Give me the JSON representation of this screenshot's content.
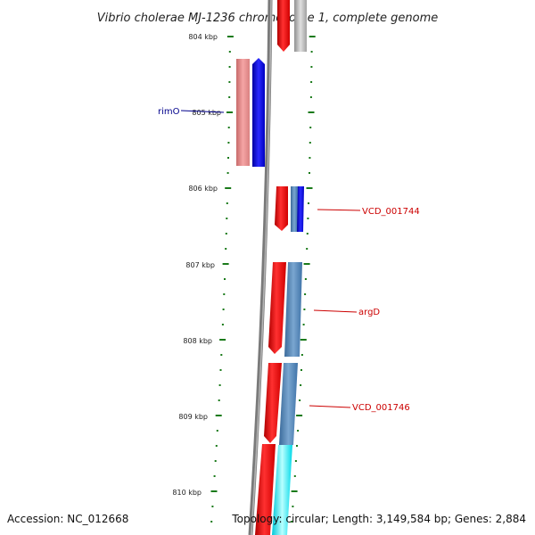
{
  "title": "Vibrio cholerae MJ-1236 chromosome 1, complete genome",
  "footer": {
    "accession": "Accession: NC_012668",
    "summary": "Topology: circular; Length: 3,149,584 bp; Genes: 2,884"
  },
  "ticks": [
    {
      "label": "804 kbp"
    },
    {
      "label": "805 kbp"
    },
    {
      "label": "806 kbp"
    },
    {
      "label": "807 kbp"
    },
    {
      "label": "808 kbp"
    },
    {
      "label": "809 kbp"
    },
    {
      "label": "810 kbp"
    }
  ],
  "gene_labels": [
    {
      "text": "rimO",
      "color": "#00008b"
    },
    {
      "text": "VCD_001744",
      "color": "#cc0000"
    },
    {
      "text": "argD",
      "color": "#cc0000"
    },
    {
      "text": "VCD_001746",
      "color": "#cc0000"
    }
  ],
  "colors": {
    "backbone": "#7a7a7a",
    "tick": "#1a7a1a",
    "red": "#e00000",
    "pink": "#e88080",
    "blue": "#0000dd",
    "steelblue": "#4a7fb5",
    "cyan": "#00e5ee",
    "grey": "#b0b0b0"
  }
}
